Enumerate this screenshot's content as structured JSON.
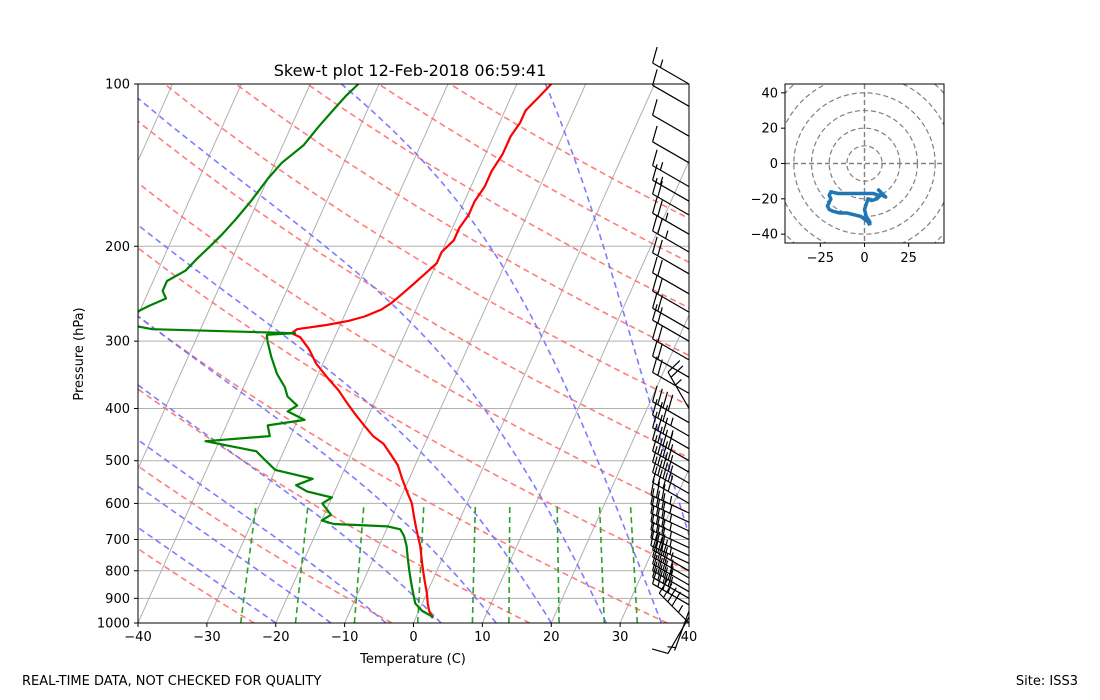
{
  "footer": {
    "left_text": "REAL-TIME DATA, NOT CHECKED FOR QUALITY",
    "right_text": "Site: ISS3"
  },
  "colors": {
    "temperature": "#ff0000",
    "dewpoint": "#008000",
    "dry_adiabat": "#ff6666",
    "moist_adiabat": "#6666ff",
    "mixing_ratio": "#2ca02c",
    "isotherm_grid": "#b0b0b0",
    "hodograph": "#1f77b4",
    "barb": "#000000"
  },
  "chart_data": [
    {
      "type": "line",
      "kind": "skew-t",
      "title": "Skew-t plot 12-Feb-2018 06:59:41",
      "xlabel": "Temperature (C)",
      "ylabel": "Pressure (hPa)",
      "xlim": [
        -40,
        40
      ],
      "ylim": [
        1000,
        100
      ],
      "y_scale": "log",
      "x_ticks": [
        "−40",
        "−30",
        "−20",
        "−10",
        "0",
        "10",
        "20",
        "30",
        "40"
      ],
      "y_ticks": [
        100,
        200,
        300,
        400,
        500,
        600,
        700,
        800,
        900,
        1000
      ],
      "grid": true,
      "series": [
        {
          "key": "temperature",
          "points": [
            [
              2.5,
              980
            ],
            [
              1.5,
              950
            ],
            [
              0.8,
              920
            ],
            [
              0,
              880
            ],
            [
              -1,
              840
            ],
            [
              -2,
              800
            ],
            [
              -3,
              760
            ],
            [
              -4,
              720
            ],
            [
              -5,
              690
            ],
            [
              -6,
              660
            ],
            [
              -7,
              630
            ],
            [
              -8,
              600
            ],
            [
              -9.5,
              570
            ],
            [
              -11,
              540
            ],
            [
              -12.5,
              510
            ],
            [
              -14,
              490
            ],
            [
              -16,
              465
            ],
            [
              -18,
              450
            ],
            [
              -20,
              430
            ],
            [
              -22,
              410
            ],
            [
              -24,
              390
            ],
            [
              -26,
              370
            ],
            [
              -28.5,
              350
            ],
            [
              -31,
              330
            ],
            [
              -33,
              310
            ],
            [
              -35,
              295
            ],
            [
              -36.5,
              290
            ],
            [
              -36,
              285
            ],
            [
              -32,
              280
            ],
            [
              -29,
              275
            ],
            [
              -27,
              270
            ],
            [
              -25,
              262
            ],
            [
              -24,
              255
            ],
            [
              -23,
              245
            ],
            [
              -22,
              235
            ],
            [
              -21,
              225
            ],
            [
              -20,
              215
            ],
            [
              -20,
              205
            ],
            [
              -19,
              195
            ],
            [
              -19,
              185
            ],
            [
              -18.5,
              175
            ],
            [
              -18.5,
              165
            ],
            [
              -18,
              155
            ],
            [
              -18,
              145
            ],
            [
              -17.5,
              135
            ],
            [
              -17.5,
              125
            ],
            [
              -17,
              118
            ],
            [
              -17,
              112
            ],
            [
              -16,
              106
            ],
            [
              -15,
              100
            ]
          ]
        },
        {
          "key": "dewpoint",
          "points": [
            [
              2.5,
              975
            ],
            [
              0.5,
              950
            ],
            [
              -1,
              920
            ],
            [
              -2,
              880
            ],
            [
              -3,
              840
            ],
            [
              -4,
              800
            ],
            [
              -5,
              760
            ],
            [
              -6,
              720
            ],
            [
              -7,
              690
            ],
            [
              -8,
              670
            ],
            [
              -10,
              662
            ],
            [
              -18,
              655
            ],
            [
              -20,
              645
            ],
            [
              -19,
              630
            ],
            [
              -21,
              600
            ],
            [
              -20,
              585
            ],
            [
              -24,
              570
            ],
            [
              -26,
              555
            ],
            [
              -24,
              540
            ],
            [
              -30,
              520
            ],
            [
              -32,
              500
            ],
            [
              -34,
              480
            ],
            [
              -42,
              460
            ],
            [
              -33,
              450
            ],
            [
              -34,
              430
            ],
            [
              -29,
              420
            ],
            [
              -32,
              405
            ],
            [
              -31,
              395
            ],
            [
              -33,
              380
            ],
            [
              -34,
              365
            ],
            [
              -36,
              345
            ],
            [
              -38,
              320
            ],
            [
              -39.5,
              300
            ],
            [
              -40,
              292
            ],
            [
              -36,
              290
            ],
            [
              -57,
              285
            ],
            [
              -62,
              278
            ],
            [
              -64,
              272
            ],
            [
              -61,
              268
            ],
            [
              -59,
              258
            ],
            [
              -57,
              250
            ],
            [
              -58,
              242
            ],
            [
              -58,
              232
            ],
            [
              -56,
              222
            ],
            [
              -55,
              210
            ],
            [
              -54,
              200
            ],
            [
              -53,
              190
            ],
            [
              -52,
              178
            ],
            [
              -51,
              165
            ],
            [
              -50,
              150
            ],
            [
              -49,
              140
            ],
            [
              -47,
              130
            ],
            [
              -46,
              120
            ],
            [
              -45,
              112
            ],
            [
              -44,
              105
            ],
            [
              -43,
              100
            ]
          ]
        }
      ],
      "wind_barbs": [
        {
          "p": 1000,
          "spd": 45,
          "dir": 315
        },
        {
          "p": 975,
          "spd": 10,
          "dir": 210
        },
        {
          "p": 950,
          "spd": 5,
          "dir": 200
        },
        {
          "p": 925,
          "spd": 40,
          "dir": 300
        },
        {
          "p": 900,
          "spd": 40,
          "dir": 300
        },
        {
          "p": 875,
          "spd": 40,
          "dir": 300
        },
        {
          "p": 850,
          "spd": 35,
          "dir": 300
        },
        {
          "p": 825,
          "spd": 35,
          "dir": 300
        },
        {
          "p": 800,
          "spd": 35,
          "dir": 300
        },
        {
          "p": 775,
          "spd": 35,
          "dir": 295
        },
        {
          "p": 750,
          "spd": 35,
          "dir": 295
        },
        {
          "p": 725,
          "spd": 35,
          "dir": 295
        },
        {
          "p": 700,
          "spd": 35,
          "dir": 295
        },
        {
          "p": 675,
          "spd": 35,
          "dir": 295
        },
        {
          "p": 650,
          "spd": 35,
          "dir": 295
        },
        {
          "p": 625,
          "spd": 35,
          "dir": 295
        },
        {
          "p": 600,
          "spd": 40,
          "dir": 300
        },
        {
          "p": 575,
          "spd": 40,
          "dir": 300
        },
        {
          "p": 550,
          "spd": 40,
          "dir": 300
        },
        {
          "p": 525,
          "spd": 40,
          "dir": 300
        },
        {
          "p": 500,
          "spd": 40,
          "dir": 300
        },
        {
          "p": 475,
          "spd": 35,
          "dir": 300
        },
        {
          "p": 450,
          "spd": 35,
          "dir": 300
        },
        {
          "p": 425,
          "spd": 40,
          "dir": 300
        },
        {
          "p": 400,
          "spd": 25,
          "dir": 330
        },
        {
          "p": 375,
          "spd": 20,
          "dir": 300
        },
        {
          "p": 350,
          "spd": 20,
          "dir": 300
        },
        {
          "p": 325,
          "spd": 20,
          "dir": 300
        },
        {
          "p": 300,
          "spd": 20,
          "dir": 300
        },
        {
          "p": 285,
          "spd": 20,
          "dir": 300
        },
        {
          "p": 265,
          "spd": 20,
          "dir": 300
        },
        {
          "p": 245,
          "spd": 20,
          "dir": 300
        },
        {
          "p": 225,
          "spd": 20,
          "dir": 300
        },
        {
          "p": 205,
          "spd": 25,
          "dir": 300
        },
        {
          "p": 190,
          "spd": 25,
          "dir": 300
        },
        {
          "p": 175,
          "spd": 20,
          "dir": 300
        },
        {
          "p": 165,
          "spd": 15,
          "dir": 300
        },
        {
          "p": 155,
          "spd": 15,
          "dir": 300
        },
        {
          "p": 140,
          "spd": 10,
          "dir": 300
        },
        {
          "p": 125,
          "spd": 10,
          "dir": 300
        },
        {
          "p": 110,
          "spd": 10,
          "dir": 300
        },
        {
          "p": 100,
          "spd": 15,
          "dir": 300
        }
      ]
    },
    {
      "type": "line",
      "kind": "hodograph",
      "xlim": [
        -45,
        45
      ],
      "ylim": [
        -45,
        45
      ],
      "x_ticks": [
        "−25",
        "0",
        "25"
      ],
      "y_ticks": [
        "40",
        "20",
        "0",
        "−20",
        "−40"
      ],
      "rings": [
        10,
        20,
        30,
        40,
        50,
        60
      ],
      "points": [
        [
          3,
          -35
        ],
        [
          2,
          -33
        ],
        [
          -2,
          -30
        ],
        [
          -6,
          -29
        ],
        [
          -10,
          -28
        ],
        [
          -14,
          -28
        ],
        [
          -18,
          -27
        ],
        [
          -20,
          -26
        ],
        [
          -21,
          -24
        ],
        [
          -20,
          -22
        ],
        [
          -19,
          -20
        ],
        [
          -20,
          -18
        ],
        [
          -19,
          -16
        ],
        [
          -15,
          -17
        ],
        [
          -10,
          -17
        ],
        [
          -5,
          -17
        ],
        [
          0,
          -17
        ],
        [
          5,
          -17
        ],
        [
          8,
          -18
        ],
        [
          10,
          -18
        ],
        [
          12,
          -19
        ],
        [
          8,
          -15
        ],
        [
          10,
          -17
        ],
        [
          7,
          -20
        ],
        [
          4,
          -21
        ],
        [
          2,
          -20
        ],
        [
          1,
          -23
        ],
        [
          0,
          -26
        ],
        [
          1,
          -30
        ],
        [
          3,
          -33
        ],
        [
          3,
          -35
        ]
      ]
    }
  ]
}
